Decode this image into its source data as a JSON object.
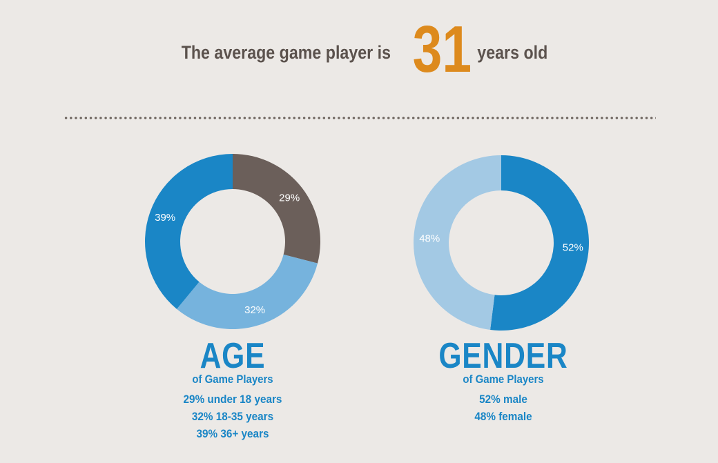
{
  "headline": {
    "prefix": "The average game player is",
    "value": "31",
    "suffix": "years old"
  },
  "colors": {
    "background": "#ece9e6",
    "dark_blue": "#1a86c6",
    "light_blue": "#76b3dd",
    "pale_blue": "#a3c9e4",
    "brown": "#6b5f5a",
    "orange": "#dd8a1d"
  },
  "age_block": {
    "title": "AGE",
    "subtitle": "of Game Players",
    "lines": [
      "29% under 18 years",
      "32% 18-35 years",
      "39% 36+ years"
    ]
  },
  "gender_block": {
    "title": "GENDER",
    "subtitle": "of Game Players",
    "lines": [
      "52% male",
      "48% female"
    ]
  },
  "chart_data": [
    {
      "type": "pie",
      "title": "AGE",
      "subtitle": "of Game Players",
      "donut": true,
      "slices": [
        {
          "label": "29%",
          "value": 29,
          "category": "under 18 years",
          "color": "#6b5f5a"
        },
        {
          "label": "32%",
          "value": 32,
          "category": "18-35 years",
          "color": "#76b3dd"
        },
        {
          "label": "39%",
          "value": 39,
          "category": "36+ years",
          "color": "#1a86c6"
        }
      ]
    },
    {
      "type": "pie",
      "title": "GENDER",
      "subtitle": "of Game Players",
      "donut": true,
      "slices": [
        {
          "label": "52%",
          "value": 52,
          "category": "male",
          "color": "#1a86c6"
        },
        {
          "label": "48%",
          "value": 48,
          "category": "female",
          "color": "#a3c9e4"
        }
      ]
    }
  ]
}
